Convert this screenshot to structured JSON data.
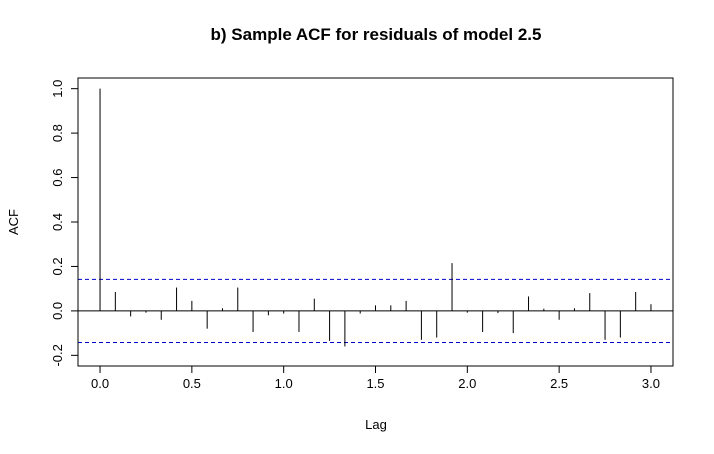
{
  "chart_data": {
    "type": "bar",
    "title": "b) Sample ACF for residuals of model 2.5",
    "xlabel": "Lag",
    "ylabel": "ACF",
    "xlim": [
      -0.12,
      3.12
    ],
    "ylim": [
      -0.2,
      1.0
    ],
    "xticks": [
      "0.0",
      "0.5",
      "1.0",
      "1.5",
      "2.0",
      "2.5",
      "3.0"
    ],
    "yticks": [
      "-0.2",
      "0.0",
      "0.2",
      "0.4",
      "0.6",
      "0.8",
      "1.0"
    ],
    "confidence_bound": 0.142,
    "confidence_color": "#0000cc",
    "grid": false,
    "lags": [
      0.0,
      0.0833,
      0.1667,
      0.25,
      0.3333,
      0.4167,
      0.5,
      0.5833,
      0.6667,
      0.75,
      0.8333,
      0.9167,
      1.0,
      1.0833,
      1.1667,
      1.25,
      1.3333,
      1.4167,
      1.5,
      1.5833,
      1.6667,
      1.75,
      1.8333,
      1.9167,
      2.0,
      2.0833,
      2.1667,
      2.25,
      2.3333,
      2.4167,
      2.5,
      2.5833,
      2.6667,
      2.75,
      2.8333,
      2.9167,
      3.0
    ],
    "values": [
      1.0,
      0.085,
      -0.025,
      -0.008,
      -0.04,
      0.105,
      0.045,
      -0.08,
      0.012,
      0.105,
      -0.095,
      -0.02,
      -0.012,
      -0.095,
      0.055,
      -0.135,
      -0.16,
      -0.012,
      0.025,
      0.025,
      0.045,
      -0.13,
      -0.12,
      0.215,
      -0.008,
      -0.095,
      -0.01,
      -0.1,
      0.065,
      0.01,
      -0.04,
      0.012,
      0.08,
      -0.13,
      -0.12,
      0.085,
      0.03
    ]
  }
}
